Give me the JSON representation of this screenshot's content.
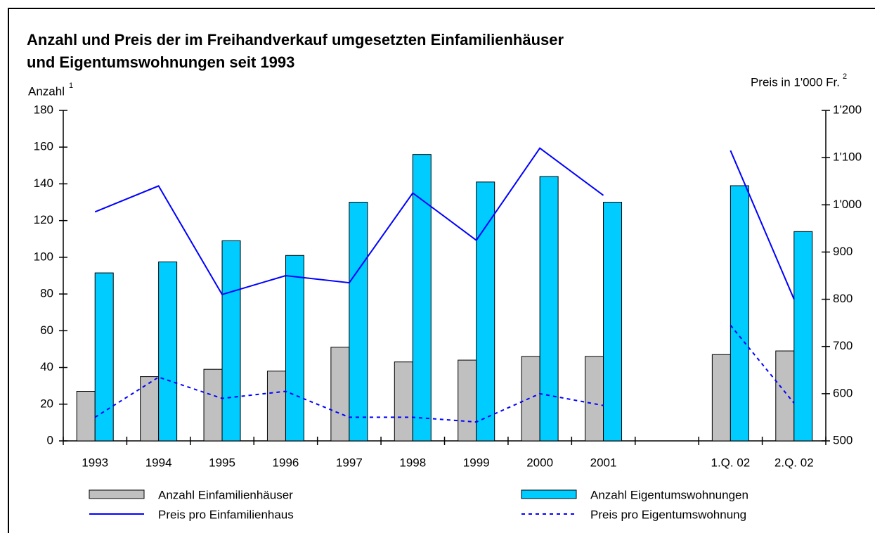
{
  "chart_data": {
    "type": "bar",
    "title": [
      "Anzahl und Preis der im Freihandverkauf umgesetzten Einfamilienhäuser",
      "und Eigentumswohnungen seit 1993"
    ],
    "ylabel": "Anzahl",
    "ylabel_note": "1",
    "y2label": "Preis in 1'000 Fr.",
    "y2label_note": "2",
    "categories": [
      "1993",
      "1994",
      "1995",
      "1996",
      "1997",
      "1998",
      "1999",
      "2000",
      "2001",
      null,
      "1.Q. 02",
      "2.Q. 02"
    ],
    "series": [
      {
        "name": "Anzahl Einfamilienhäuser",
        "type": "bar",
        "color": "#c0c0c0",
        "values": [
          27,
          35,
          39,
          38,
          51,
          43,
          44,
          46,
          46,
          null,
          47,
          49
        ]
      },
      {
        "name": "Anzahl Eigentumswohnungen",
        "type": "bar",
        "color": "#00ccff",
        "values": [
          91.5,
          97.5,
          109,
          101,
          130,
          156,
          141,
          144,
          130,
          null,
          139,
          114
        ]
      },
      {
        "name": "Preis pro Einfamilienhaus",
        "type": "line",
        "axis": "y2",
        "color": "#0000ff",
        "dashed": false,
        "values": [
          985,
          1040,
          810,
          850,
          835,
          1025,
          925,
          1120,
          1020,
          null,
          1115,
          800
        ]
      },
      {
        "name": "Preis pro Eigentumswohnung",
        "type": "line",
        "axis": "y2",
        "color": "#0000ff",
        "dashed": true,
        "values": [
          550,
          635,
          590,
          605,
          550,
          550,
          540,
          600,
          575,
          null,
          745,
          580
        ]
      }
    ],
    "ylim": [
      0,
      180
    ],
    "yticks": [
      0,
      20,
      40,
      60,
      80,
      100,
      120,
      140,
      160,
      180
    ],
    "y2lim": [
      500,
      1200
    ],
    "y2ticks": [
      500,
      600,
      700,
      800,
      900,
      {
        "value": 1000,
        "label": "1'000"
      },
      {
        "value": 1100,
        "label": "1'100"
      },
      {
        "value": 1200,
        "label": "1'200"
      }
    ],
    "grid": false
  }
}
